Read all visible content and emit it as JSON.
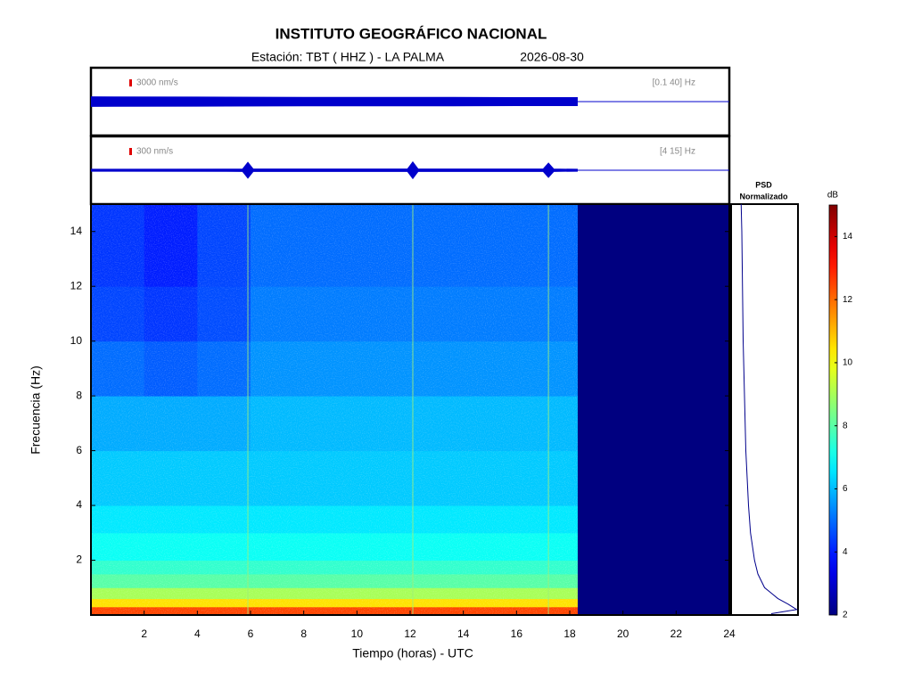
{
  "chart_data": [
    {
      "type": "waveform",
      "scale": 3000,
      "scale_label": "3000 nm/s",
      "band_label": "[0.1 40] Hz",
      "x": [
        0,
        4,
        8,
        12,
        16,
        18.3
      ],
      "amplitude": [
        2000,
        1900,
        1800,
        1800,
        1700,
        1700
      ],
      "xlim": [
        0,
        24
      ],
      "color": "#0000cc"
    },
    {
      "type": "waveform",
      "scale": 300,
      "scale_label": "300 nm/s",
      "band_label": "[4 15] Hz",
      "x": [
        0,
        5.7,
        5.9,
        6.1,
        11.9,
        12.1,
        12.3,
        17.0,
        17.2,
        17.4,
        18.3
      ],
      "amplitude": [
        40,
        50,
        330,
        50,
        50,
        350,
        50,
        50,
        300,
        50,
        40
      ],
      "xlim": [
        0,
        24
      ],
      "color": "#0000cc"
    },
    {
      "type": "heatmap",
      "title": "INSTITUTO GEOGRÁFICO NACIONAL",
      "subtitle": "Estación:  TBT ( HHZ ) - LA PALMA",
      "date": "2026-08-30",
      "xlabel": "Tiempo (horas) - UTC",
      "ylabel": "Frecuencia  (Hz)",
      "x_edges": [
        0,
        2,
        4,
        6,
        8,
        10,
        12,
        14,
        16,
        18,
        18.3,
        24
      ],
      "y_edges": [
        0,
        0.3,
        0.6,
        1,
        1.5,
        2,
        3,
        4,
        6,
        8,
        10,
        12,
        15
      ],
      "z": [
        [
          12.5,
          12.5,
          12.5,
          12.5,
          12.5,
          12.5,
          12.5,
          12.5,
          12.5,
          12.5,
          2
        ],
        [
          10.5,
          10.5,
          10.5,
          10.5,
          10.5,
          10.5,
          10.5,
          10.5,
          10.5,
          10.5,
          2
        ],
        [
          9,
          9,
          9,
          9,
          9,
          9,
          9,
          9,
          9,
          9,
          2
        ],
        [
          8,
          8,
          8,
          8,
          8,
          8,
          8,
          8,
          8,
          8,
          2
        ],
        [
          7.5,
          7.5,
          7.5,
          7.5,
          7.5,
          7.5,
          7.5,
          7.5,
          7.5,
          7.5,
          2
        ],
        [
          7,
          7,
          7,
          7,
          7,
          7,
          7,
          7,
          7,
          7,
          2
        ],
        [
          6.6,
          6.6,
          6.6,
          6.6,
          6.6,
          6.6,
          6.6,
          6.6,
          6.6,
          6.6,
          2
        ],
        [
          6.2,
          6.2,
          6.2,
          6.2,
          6.2,
          6.2,
          6.2,
          6.2,
          6.2,
          6.2,
          2
        ],
        [
          5.8,
          5.8,
          5.8,
          6,
          6,
          6,
          6,
          6,
          6,
          6,
          2
        ],
        [
          5,
          4.8,
          5,
          5.5,
          5.5,
          5.5,
          5.5,
          5.5,
          5.5,
          5.5,
          2
        ],
        [
          4.5,
          4.3,
          4.6,
          5.2,
          5.2,
          5.2,
          5.2,
          5.2,
          5.2,
          5.2,
          2
        ],
        [
          4.3,
          4,
          4.5,
          5,
          5,
          5,
          5,
          5,
          5,
          5,
          2
        ]
      ],
      "event_times": [
        5.9,
        12.1,
        17.2
      ],
      "xlim": [
        0,
        24
      ],
      "ylim": [
        0,
        15
      ],
      "xticks": [
        2,
        4,
        6,
        8,
        10,
        12,
        14,
        16,
        18,
        20,
        22,
        24
      ],
      "yticks": [
        2,
        4,
        6,
        8,
        10,
        12,
        14
      ],
      "clim": [
        2,
        15
      ],
      "cticks": [
        2,
        4,
        6,
        8,
        10,
        12,
        14
      ],
      "colorbar_label": "dB"
    },
    {
      "type": "line",
      "title_lines": [
        "PSD",
        "Normalizado"
      ],
      "color": "#00008b",
      "frequencies": [
        0.05,
        0.2,
        0.4,
        0.6,
        0.8,
        1,
        1.5,
        2,
        3,
        4,
        5,
        6,
        8,
        10,
        12,
        14,
        15
      ],
      "values": [
        0.6,
        0.98,
        0.85,
        0.7,
        0.6,
        0.5,
        0.4,
        0.35,
        0.29,
        0.26,
        0.24,
        0.22,
        0.2,
        0.18,
        0.17,
        0.16,
        0.15
      ],
      "xlim": [
        0,
        1
      ],
      "ylim": [
        0,
        15
      ]
    }
  ]
}
